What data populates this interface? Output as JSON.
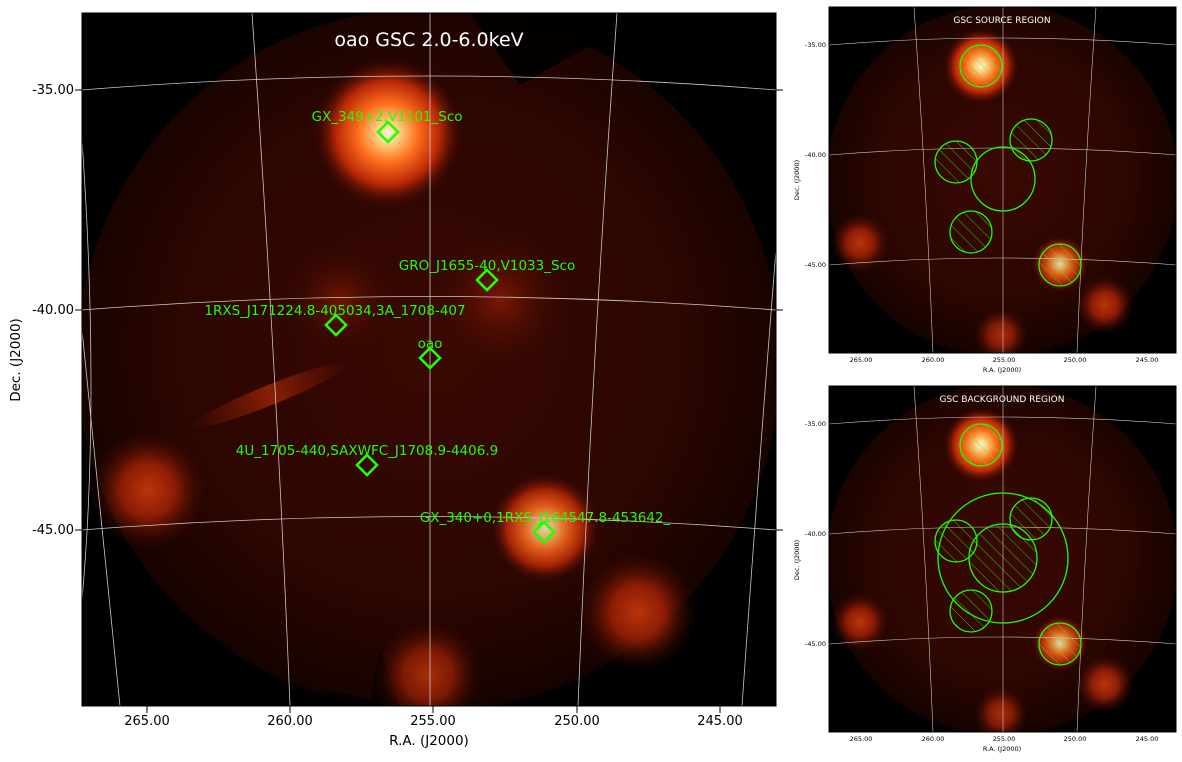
{
  "main": {
    "title": "oao GSC 2.0-6.0keV",
    "xlabel": "R.A. (J2000)",
    "ylabel": "Dec. (J2000)",
    "ra_ticks": [
      "265.00",
      "260.00",
      "255.00",
      "250.00",
      "245.00"
    ],
    "dec_ticks": [
      "-35.00",
      "-40.00",
      "-45.00"
    ],
    "sources": [
      {
        "label": "GX_349+2,V1101_Sco"
      },
      {
        "label": "GRO_J1655-40,V1033_Sco"
      },
      {
        "label": "1RXS_J171224.8-405034,3A_1708-407"
      },
      {
        "label": "oao"
      },
      {
        "label": "4U_1705-440,SAXWFC_J1708.9-4406.9"
      },
      {
        "label": "GX_340+0,1RXS_J164547.8-453642_"
      }
    ],
    "marker_color": "#22ff00"
  },
  "source_panel": {
    "title": "GSC SOURCE REGION",
    "xlabel": "R.A. (J2000)",
    "ylabel": "Dec. (J2000)",
    "ra_ticks": [
      "265.00",
      "260.00",
      "255.00",
      "250.00",
      "245.00"
    ],
    "dec_ticks": [
      "-35.00",
      "-40.00",
      "-45.00"
    ]
  },
  "background_panel": {
    "title": "GSC BACKGROUND REGION",
    "xlabel": "R.A. (J2000)",
    "ylabel": "Dec. (J2000)",
    "ra_ticks": [
      "265.00",
      "260.00",
      "255.00",
      "250.00",
      "245.00"
    ],
    "dec_ticks": [
      "-35.00",
      "-40.00",
      "-45.00"
    ]
  },
  "colors": {
    "glow": "#ff6a1a",
    "hot": "#fff4c8",
    "dim": "#4a0a02",
    "region": "#22ff00",
    "grid": "#cccccc"
  }
}
